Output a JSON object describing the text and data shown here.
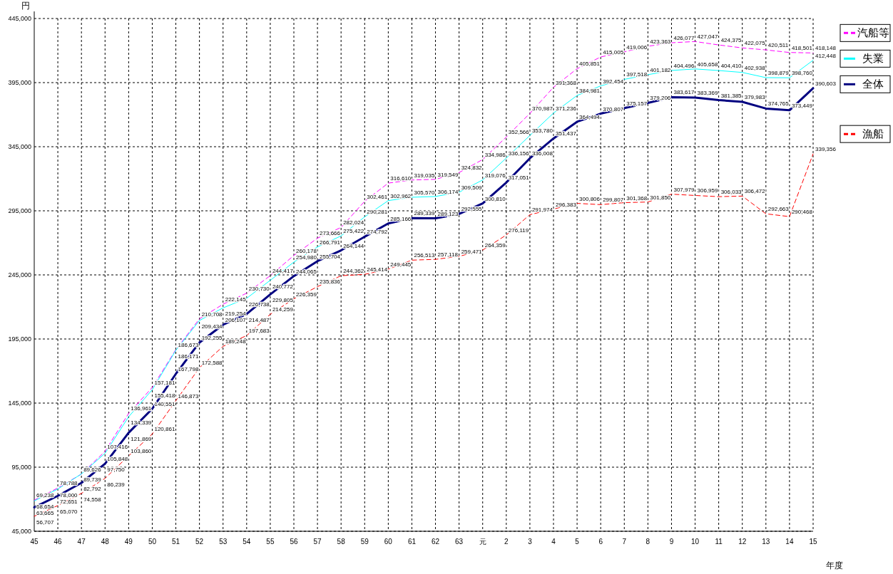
{
  "chart_data": {
    "type": "line",
    "ylabel": "円",
    "xlabel": "年度",
    "categories": [
      "45",
      "46",
      "47",
      "48",
      "49",
      "50",
      "51",
      "52",
      "53",
      "54",
      "55",
      "56",
      "57",
      "58",
      "59",
      "60",
      "61",
      "62",
      "63",
      "元",
      "2",
      "3",
      "4",
      "5",
      "6",
      "7",
      "8",
      "9",
      "10",
      "11",
      "12",
      "13",
      "14",
      "15"
    ],
    "ylim": [
      45000,
      445000
    ],
    "yticks": [
      {
        "value": 45000,
        "label": "45,000"
      },
      {
        "value": 95000,
        "label": "95,000"
      },
      {
        "value": 145000,
        "label": "145,000"
      },
      {
        "value": 195000,
        "label": "195,000"
      },
      {
        "value": 245000,
        "label": "245,000"
      },
      {
        "value": 295000,
        "label": "295,000"
      },
      {
        "value": 345000,
        "label": "345,000"
      },
      {
        "value": 395000,
        "label": "395,000"
      },
      {
        "value": 445000,
        "label": "445,000"
      }
    ],
    "grid": true,
    "legend": "right",
    "series": [
      {
        "name": "汽船等",
        "color": "#ff00ff",
        "line_style": "dashed",
        "values": [
          69238,
          78788,
          89626,
          107416,
          136961,
          157181,
          186673,
          210708,
          222145,
          230730,
          244417,
          260178,
          273666,
          282024,
          302461,
          316610,
          319035,
          319549,
          324832,
          334986,
          352566,
          370987,
          391368,
          405851,
          415005,
          419006,
          423363,
          426077,
          427047,
          424375,
          422075,
          420511,
          418501,
          418148
        ],
        "value_labels": [
          "69,238",
          "78,788",
          "89,626",
          "107,416",
          "136,961",
          "157,181",
          "186,673",
          "210,708",
          "222,145",
          "230,730",
          "244,417",
          "260,178",
          "273,666",
          "282,024",
          "302,461",
          "316,610",
          "319,035",
          "319,549",
          "324,832",
          "334,986",
          "352,566",
          "370,987",
          "391,368",
          "405,851",
          "415,005",
          "419,006",
          "423,363",
          "426,077",
          "427,047",
          "424,375",
          "422,075",
          "420,511",
          "418,501",
          "418,148"
        ]
      },
      {
        "name": "失業",
        "color": "#00ffff",
        "line_style": "solid",
        "values": [
          68654,
          78000,
          89739,
          105848,
          134339,
          155418,
          186171,
          209434,
          219254,
          226738,
          240772,
          254980,
          266791,
          275422,
          290281,
          302962,
          305570,
          306174,
          309509,
          319076,
          336156,
          353780,
          371236,
          384981,
          392454,
          397518,
          401182,
          404496,
          405658,
          404410,
          402938,
          398879,
          398760,
          412448
        ],
        "value_labels": [
          "68,654",
          "78,000",
          "89,739",
          "105,848",
          "134,339",
          "155,418",
          "186,171",
          "209,434",
          "219,254",
          "226,738",
          "240,772",
          "254,980",
          "266,791",
          "275,422",
          "290,281",
          "302,962",
          "305,570",
          "306,174",
          "309,509",
          "319,076",
          "336,156",
          "353,780",
          "371,236",
          "384,981",
          "392,454",
          "397,518",
          "401,182",
          "404,496",
          "405,658",
          "404,410",
          "402,938",
          "398,879",
          "398,760",
          "412,448"
        ]
      },
      {
        "name": "全体",
        "color": "#000080",
        "line_style": "solid",
        "values": [
          63665,
          72651,
          82792,
          97750,
          121869,
          140551,
          167798,
          192255,
          206107,
          214487,
          229805,
          244065,
          255704,
          264144,
          274792,
          285166,
          289339,
          289123,
          292555,
          300810,
          317051,
          336008,
          351437,
          364494,
          370807,
          375157,
          379206,
          383617,
          383369,
          381385,
          379983,
          374765,
          373449,
          390603
        ],
        "value_labels": [
          "63,665",
          "72,651",
          "82,792",
          "97,750",
          "121,869",
          "140,551",
          "167,798",
          "192,255",
          "206,107",
          "214,487",
          "229,805",
          "244,065",
          "255,704",
          "264,144",
          "274,792",
          "285,166",
          "289,339",
          "289,123",
          "292,555",
          "300,810",
          "317,051",
          "336,008",
          "351,437",
          "364,494",
          "370,807",
          "375,157",
          "379,206",
          "383,617",
          "383,369",
          "381,385",
          "379,983",
          "374,765",
          "373,449",
          "390,603"
        ]
      },
      {
        "name": "漁船",
        "color": "#ff0000",
        "line_style": "dashed",
        "values": [
          56707,
          65070,
          74558,
          86239,
          103860,
          120861,
          146873,
          172588,
          189248,
          197683,
          214259,
          226359,
          235836,
          244362,
          245414,
          249445,
          256513,
          257118,
          259471,
          264359,
          276119,
          291974,
          296383,
          300806,
          299807,
          301368,
          301850,
          307979,
          306959,
          306033,
          306472,
          292663,
          290468,
          339356
        ],
        "value_labels": [
          "56,707",
          "65,070",
          "74,558",
          "86,239",
          "103,860",
          "120,861",
          "146,873",
          "172,588",
          "189,248",
          "197,683",
          "214,259",
          "226,359",
          "235,836",
          "244,362",
          "245,414",
          "249,445",
          "256,513",
          "257,118",
          "259,471",
          "264,359",
          "276,119",
          "291,974",
          "296,383",
          "300,806",
          "299,807",
          "301,368",
          "301,850",
          "307,979",
          "306,959",
          "306,033",
          "306,472",
          "292,663",
          "290,468",
          "339,356"
        ]
      }
    ]
  }
}
